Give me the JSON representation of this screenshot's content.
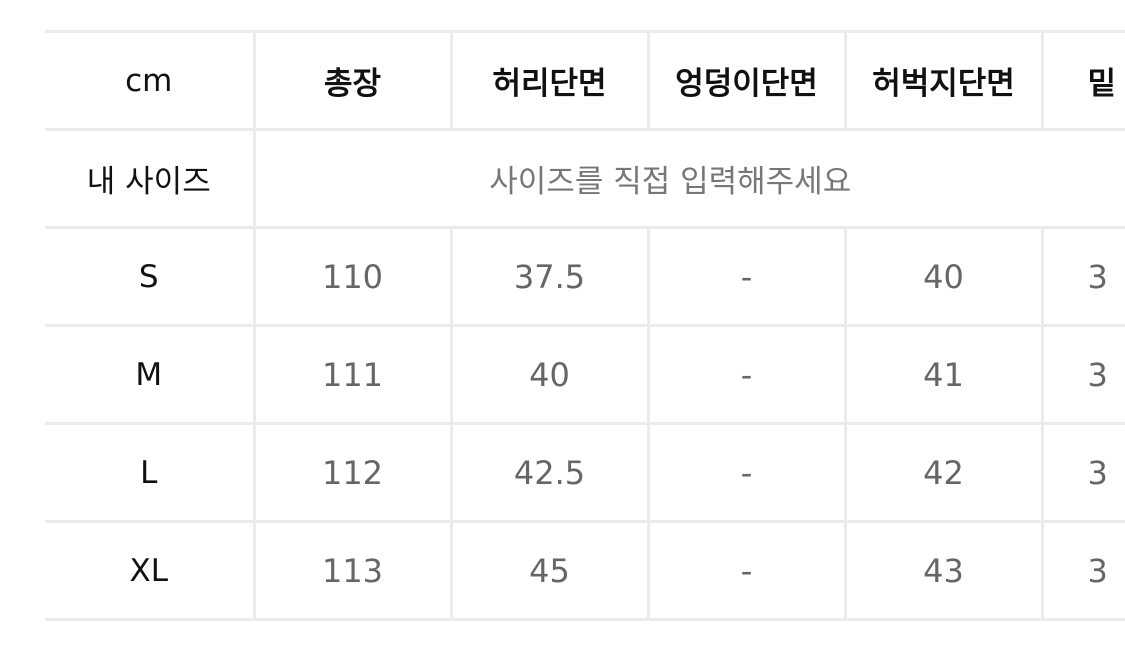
{
  "table": {
    "unit_label": "cm",
    "headers": [
      "총장",
      "허리단면",
      "엉덩이단면",
      "허벅지단면",
      "밑"
    ],
    "my_size": {
      "label": "내 사이즈",
      "placeholder": "사이즈를 직접 입력해주세요"
    },
    "rows": [
      {
        "size": "S",
        "values": [
          "110",
          "37.5",
          "-",
          "40",
          "3"
        ]
      },
      {
        "size": "M",
        "values": [
          "111",
          "40",
          "-",
          "41",
          "3"
        ]
      },
      {
        "size": "L",
        "values": [
          "112",
          "42.5",
          "-",
          "42",
          "3"
        ]
      },
      {
        "size": "XL",
        "values": [
          "113",
          "45",
          "-",
          "43",
          "3"
        ]
      }
    ]
  }
}
